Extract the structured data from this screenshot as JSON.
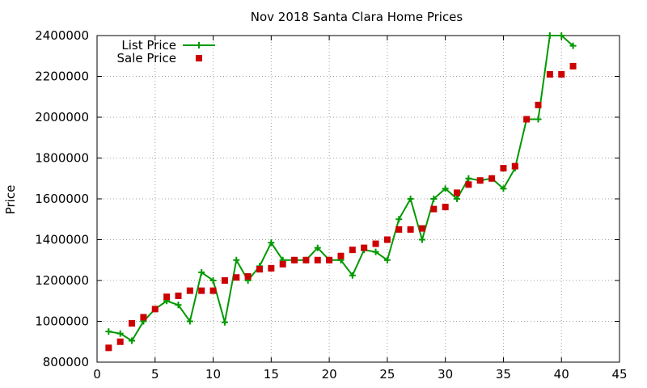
{
  "chart_data": {
    "type": "line",
    "title": "Nov 2018 Santa Clara Home Prices",
    "xlabel": "",
    "ylabel": "Price",
    "xlim": [
      0,
      45
    ],
    "ylim": [
      800000,
      2400000
    ],
    "x_ticks": [
      0,
      5,
      10,
      15,
      20,
      25,
      30,
      35,
      40,
      45
    ],
    "y_ticks": [
      800000,
      1000000,
      1200000,
      1400000,
      1600000,
      1800000,
      2000000,
      2200000,
      2400000
    ],
    "grid": true,
    "legend_position": "top-left",
    "series": [
      {
        "name": "List Price",
        "style": "line+plus",
        "color": "#009900",
        "x": [
          1,
          2,
          3,
          4,
          5,
          6,
          7,
          8,
          9,
          10,
          11,
          12,
          13,
          14,
          15,
          16,
          17,
          18,
          19,
          20,
          21,
          22,
          23,
          24,
          25,
          26,
          27,
          28,
          29,
          30,
          31,
          32,
          33,
          34,
          35,
          36,
          37,
          38,
          39,
          40,
          41
        ],
        "values": [
          950000,
          940000,
          905000,
          1000000,
          1060000,
          1100000,
          1080000,
          1000000,
          1240000,
          1200000,
          995000,
          1300000,
          1200000,
          1270000,
          1385000,
          1300000,
          1300000,
          1300000,
          1360000,
          1300000,
          1300000,
          1225000,
          1350000,
          1340000,
          1300000,
          1500000,
          1600000,
          1400000,
          1600000,
          1650000,
          1600000,
          1700000,
          1690000,
          1700000,
          1650000,
          1750000,
          1990000,
          1990000,
          2400000,
          2400000,
          2350000
        ]
      },
      {
        "name": "Sale Price",
        "style": "square",
        "color": "#cc0000",
        "x": [
          1,
          2,
          3,
          4,
          5,
          6,
          7,
          8,
          9,
          10,
          11,
          12,
          13,
          14,
          15,
          16,
          17,
          18,
          19,
          20,
          21,
          22,
          23,
          24,
          25,
          26,
          27,
          28,
          29,
          30,
          31,
          32,
          33,
          34,
          35,
          36,
          37,
          38,
          39,
          40,
          41
        ],
        "values": [
          870000,
          900000,
          990000,
          1020000,
          1060000,
          1120000,
          1125000,
          1150000,
          1150000,
          1150000,
          1200000,
          1215000,
          1220000,
          1255000,
          1260000,
          1280000,
          1300000,
          1300000,
          1300000,
          1300000,
          1320000,
          1350000,
          1360000,
          1380000,
          1400000,
          1450000,
          1450000,
          1455000,
          1550000,
          1560000,
          1630000,
          1670000,
          1690000,
          1700000,
          1750000,
          1760000,
          1990000,
          2060000,
          2210000,
          2210000,
          2250000
        ]
      }
    ]
  }
}
